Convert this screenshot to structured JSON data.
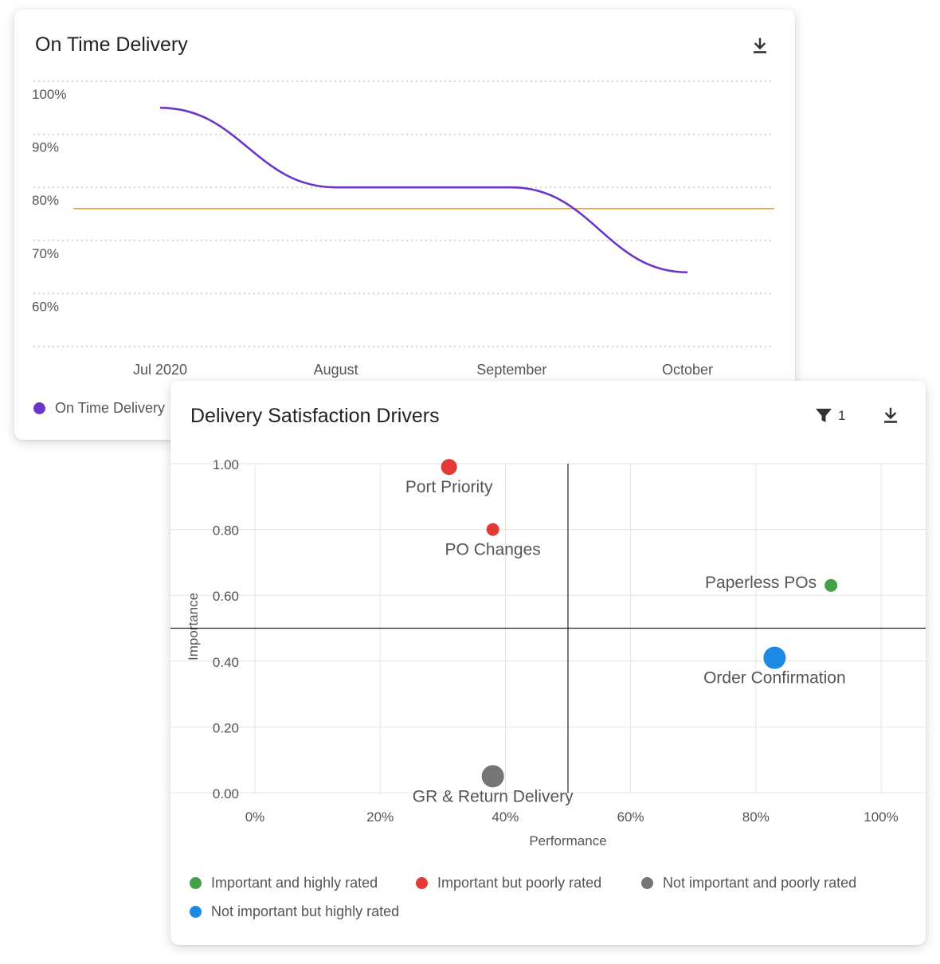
{
  "card1": {
    "title": "On Time Delivery",
    "legend_label": "On Time Delivery"
  },
  "card2": {
    "title": "Delivery Satisfaction Drivers",
    "filter_count": "1"
  },
  "colors": {
    "line": "#6a35c9",
    "target": "#f0a030",
    "green": "#43a047",
    "red": "#e53935",
    "gray": "#757575",
    "blue": "#1e88e5"
  },
  "icons": {
    "download": "download-icon",
    "filter": "filter-icon"
  },
  "chart_data": [
    {
      "type": "line",
      "title": "On Time Delivery",
      "categories": [
        "Jul 2020",
        "August",
        "September",
        "October"
      ],
      "series": [
        {
          "name": "On Time Delivery",
          "values": [
            95,
            80,
            80,
            64
          ]
        }
      ],
      "target_line": 76,
      "y_ticks": [
        "100%",
        "90%",
        "80%",
        "70%",
        "60%"
      ],
      "ylim": [
        50,
        100
      ],
      "grid": "dotted horizontal",
      "legend": "bottom-left"
    },
    {
      "type": "scatter",
      "title": "Delivery Satisfaction Drivers",
      "xlabel": "Performance",
      "ylabel": "Importance",
      "xlim": [
        0,
        1
      ],
      "ylim": [
        0,
        1
      ],
      "x_ticks": [
        "0%",
        "20%",
        "40%",
        "60%",
        "80%",
        "100%"
      ],
      "y_ticks": [
        "1.00",
        "0.80",
        "0.60",
        "0.40",
        "0.20",
        "0.00"
      ],
      "quadrant_lines": {
        "x": 0.5,
        "y": 0.5
      },
      "points": [
        {
          "label": "Port Priority",
          "x": 0.31,
          "y": 0.99,
          "category": "Important but poorly rated",
          "size": "medium"
        },
        {
          "label": "PO Changes",
          "x": 0.38,
          "y": 0.8,
          "category": "Important but poorly rated",
          "size": "small"
        },
        {
          "label": "Paperless POs",
          "x": 0.92,
          "y": 0.63,
          "category": "Important and highly rated",
          "size": "small"
        },
        {
          "label": "Order Confirmation",
          "x": 0.83,
          "y": 0.41,
          "category": "Not important but highly rated",
          "size": "large"
        },
        {
          "label": "GR & Return Delivery",
          "x": 0.38,
          "y": 0.05,
          "category": "Not important and poorly rated",
          "size": "large"
        }
      ],
      "legend_entries": [
        {
          "label": "Important and highly rated",
          "color": "#43a047"
        },
        {
          "label": "Important but poorly rated",
          "color": "#e53935"
        },
        {
          "label": "Not important and poorly rated",
          "color": "#757575"
        },
        {
          "label": "Not important but highly rated",
          "color": "#1e88e5"
        }
      ],
      "legend": "bottom"
    }
  ]
}
